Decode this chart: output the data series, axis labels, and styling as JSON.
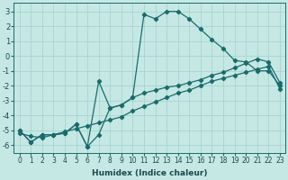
{
  "bg_color": "#c5e8e5",
  "grid_color": "#a8d4d0",
  "line_color": "#1a6b6b",
  "xlabel": "Humidex (Indice chaleur)",
  "xlim": [
    -0.5,
    23.5
  ],
  "ylim": [
    -6.5,
    3.6
  ],
  "xtick_labels": [
    "0",
    "1",
    "2",
    "3",
    "4",
    "5",
    "6",
    "7",
    "8",
    "9",
    "10",
    "11",
    "12",
    "13",
    "14",
    "15",
    "16",
    "17",
    "18",
    "19",
    "20",
    "21",
    "22",
    "23"
  ],
  "ytick_vals": [
    -6,
    -5,
    -4,
    -3,
    -2,
    -1,
    0,
    1,
    2,
    3
  ],
  "x": [
    0,
    1,
    2,
    3,
    4,
    5,
    6,
    7,
    8,
    9,
    10,
    11,
    12,
    13,
    14,
    15,
    16,
    17,
    18,
    19,
    20,
    21,
    22,
    23
  ],
  "line_main_y": [
    -5.0,
    -5.8,
    -5.3,
    -5.3,
    -5.2,
    -4.6,
    -6.1,
    -1.7,
    -3.5,
    -3.3,
    -2.8,
    2.8,
    2.5,
    3.0,
    3.0,
    2.5,
    1.8,
    1.1,
    0.5,
    -0.3,
    -0.4,
    -1.0,
    -1.0,
    -2.0
  ],
  "line_upper_y": [
    -5.0,
    -5.8,
    -5.3,
    -5.3,
    -5.2,
    -4.6,
    -6.1,
    -5.3,
    -3.5,
    -3.3,
    -2.8,
    -2.5,
    -2.3,
    -2.1,
    -2.0,
    -1.8,
    -1.6,
    -1.3,
    -1.1,
    -0.8,
    -0.5,
    -0.2,
    -0.4,
    -1.8
  ],
  "line_lower_y": [
    -5.2,
    -5.4,
    -5.5,
    -5.3,
    -5.1,
    -4.9,
    -4.7,
    -4.5,
    -4.3,
    -4.1,
    -3.7,
    -3.4,
    -3.1,
    -2.8,
    -2.5,
    -2.3,
    -2.0,
    -1.7,
    -1.5,
    -1.3,
    -1.1,
    -0.9,
    -0.7,
    -2.2
  ],
  "marker_size": 2.2,
  "line_width": 0.9,
  "xlabel_fontsize": 6.5,
  "tick_fontsize": 5.5,
  "ytick_fontsize": 6.0
}
